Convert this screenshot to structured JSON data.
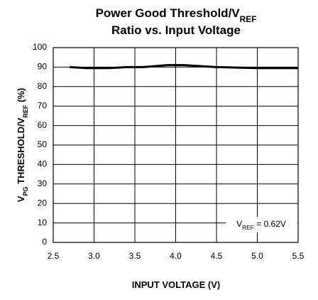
{
  "chart_data": {
    "type": "line",
    "title": [
      [
        {
          "text": "Power Good Threshold/V"
        },
        {
          "text": "REF",
          "sub": true
        }
      ],
      [
        {
          "text": "Ratio vs. Input Voltage"
        }
      ]
    ],
    "x_label": [
      {
        "text": "INPUT VOLTAGE (V)"
      }
    ],
    "y_label": [
      {
        "text": "V"
      },
      {
        "text": "PG",
        "sub": true
      },
      {
        "text": " THRESHOLD/V"
      },
      {
        "text": "REF",
        "sub": true
      },
      {
        "text": " (%)"
      }
    ],
    "annotation": [
      {
        "text": "V"
      },
      {
        "text": "REF",
        "sub": true
      },
      {
        "text": " = 0.62V"
      }
    ],
    "x": [
      2.7,
      2.9,
      3.2,
      3.4,
      3.6,
      3.9,
      4.1,
      4.5,
      5.0,
      5.5
    ],
    "series": [
      {
        "color": "#000000",
        "values": [
          90,
          89.5,
          89.5,
          90,
          90,
          91,
          91,
          90,
          89.5,
          89.5
        ]
      }
    ],
    "xlim": [
      2.5,
      5.5
    ],
    "xticks": [
      2.5,
      {
        "value": 3,
        "label": "3.0"
      },
      3.5,
      {
        "value": 4,
        "label": "4.0"
      },
      4.5,
      {
        "value": 5,
        "label": "5.0"
      },
      5.5
    ],
    "ylim": [
      0,
      100
    ],
    "yticks": [
      0,
      10,
      20,
      30,
      40,
      50,
      60,
      70,
      80,
      90,
      100
    ],
    "grid": true
  }
}
